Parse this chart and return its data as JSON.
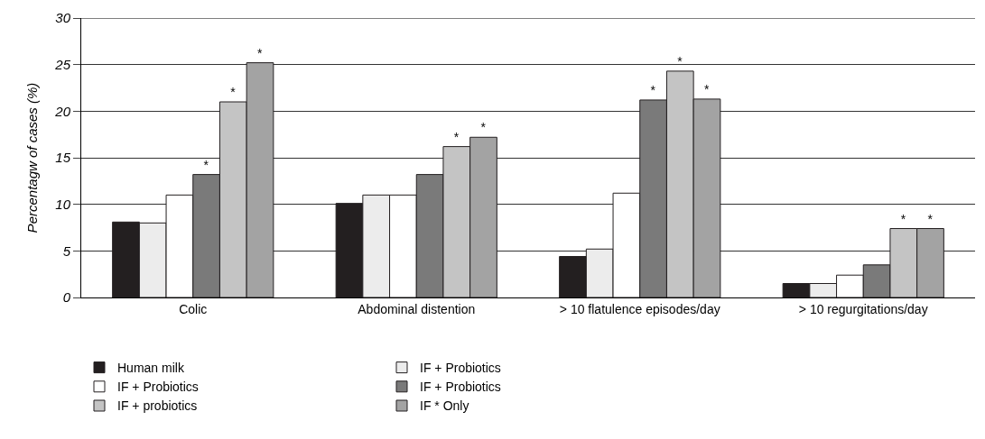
{
  "chart_data": {
    "type": "bar",
    "ylabel": "Percentagw of cases (%)",
    "categories": [
      "Colic",
      "Abdominal distention",
      "> 10 flatulence episodes/day",
      "> 10 regurgitations/day"
    ],
    "series": [
      {
        "name": "Human milk",
        "color": "#231f20",
        "values": [
          8.1,
          10.1,
          4.4,
          1.5
        ]
      },
      {
        "name": "IF + Probiotics",
        "color": "#ececec",
        "values": [
          8.0,
          11.0,
          5.2,
          1.5
        ]
      },
      {
        "name": "IF + Probiotics",
        "color": "#ffffff",
        "values": [
          11.0,
          11.0,
          11.2,
          2.4
        ]
      },
      {
        "name": "IF + Probiotics",
        "color": "#7a7a7a",
        "values": [
          13.2,
          13.2,
          21.2,
          3.5
        ],
        "value_labels": [
          "*",
          null,
          "*",
          null
        ]
      },
      {
        "name": "IF + probiotics",
        "color": "#c4c4c4",
        "values": [
          21.0,
          16.2,
          24.3,
          7.4
        ],
        "value_labels": [
          "*",
          "*",
          "*",
          "*"
        ]
      },
      {
        "name": "IF * Only",
        "color": "#a3a3a3",
        "values": [
          25.2,
          17.2,
          21.3,
          7.4
        ],
        "value_labels": [
          "*",
          "*",
          "*",
          "*"
        ]
      }
    ],
    "ylim": [
      0,
      30
    ],
    "yticks": [
      0,
      5,
      10,
      15,
      20,
      25,
      30
    ],
    "grid": "y",
    "legend": "bottom"
  }
}
